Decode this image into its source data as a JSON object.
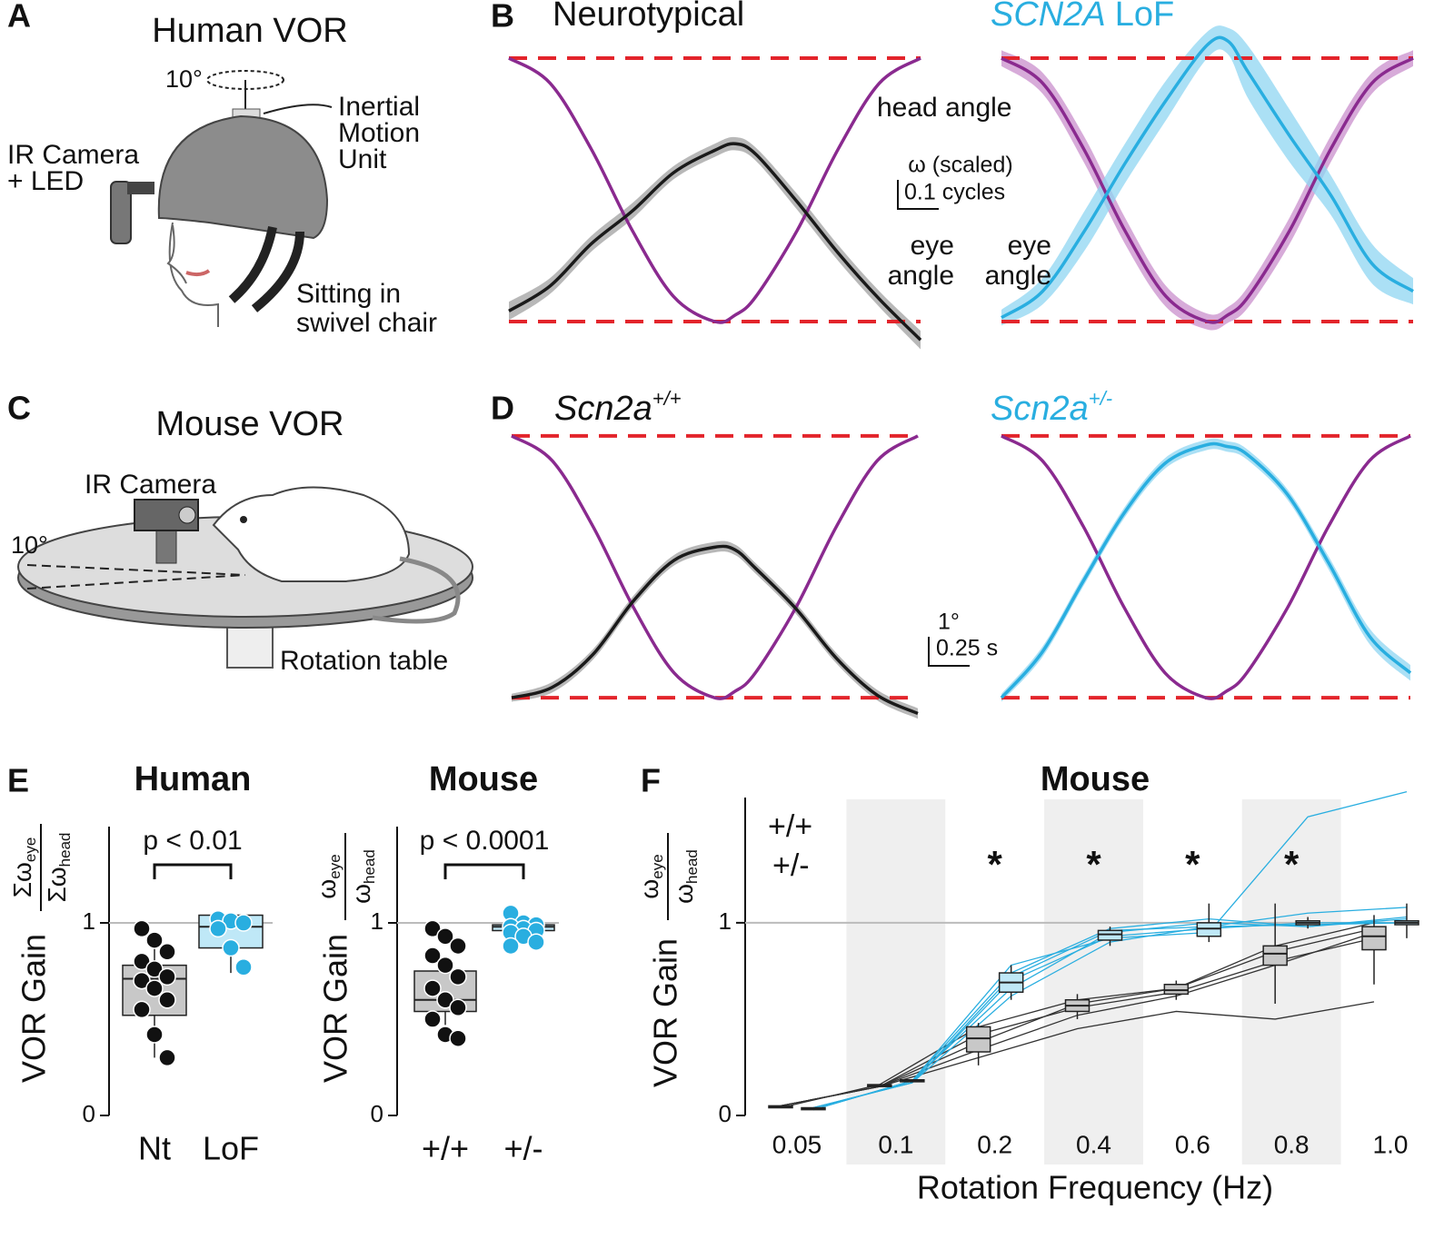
{
  "panel_labels": [
    "A",
    "B",
    "C",
    "D",
    "E",
    "F"
  ],
  "illustrations": [
    {
      "title": "Human VOR",
      "labels": [
        "10°",
        "Inertial",
        "Motion",
        "Unit",
        "IR Camera",
        "+ LED",
        "Sitting in",
        "swivel chair"
      ]
    },
    {
      "title": "Mouse VOR",
      "labels": [
        "IR Camera",
        "10°",
        "Rotation table"
      ]
    }
  ],
  "chart_data": [
    {
      "type": "line",
      "title_parts": [
        "Neurotypical"
      ],
      "title_styles": [
        "normal"
      ],
      "title_color": "#111111",
      "x": [
        0,
        0.1,
        0.2,
        0.3,
        0.4,
        0.5,
        0.55,
        0.6,
        0.7,
        0.8,
        0.9,
        1
      ],
      "xlim": [
        0,
        1
      ],
      "ylim": [
        -1.2,
        1.2
      ],
      "reference_lines": [
        -1,
        1
      ],
      "reference_color": "#e3242b",
      "series": [
        {
          "name_lines": [
            "head angle"
          ],
          "color": "#8a2a8f",
          "values": [
            1,
            0.81,
            0.31,
            -0.31,
            -0.81,
            -1,
            -0.95,
            -0.81,
            -0.31,
            0.31,
            0.81,
            1
          ]
        },
        {
          "name_lines": [
            "eye",
            "angle"
          ],
          "color": "#1a1a1a",
          "band_color": "#a0a0a0",
          "values": [
            -0.92,
            -0.73,
            -0.41,
            -0.16,
            0.13,
            0.3,
            0.35,
            0.27,
            -0.09,
            -0.48,
            -0.83,
            -1.14
          ],
          "errors": [
            0.07,
            0.06,
            0.06,
            0.06,
            0.05,
            0.05,
            0.05,
            0.05,
            0.06,
            0.06,
            0.06,
            0.07
          ]
        }
      ],
      "scale_bar": [
        "ω (scaled)",
        "0.1 cycles"
      ]
    },
    {
      "type": "line",
      "title_parts": [
        "SCN2A",
        "LoF"
      ],
      "title_styles": [
        "italic",
        "normal"
      ],
      "title_color": "#29aee0",
      "x": [
        0,
        0.1,
        0.2,
        0.3,
        0.4,
        0.5,
        0.55,
        0.6,
        0.7,
        0.8,
        0.9,
        1
      ],
      "xlim": [
        0,
        1
      ],
      "ylim": [
        -1.2,
        1.2
      ],
      "reference_lines": [
        -1,
        1
      ],
      "reference_color": "#e3242b",
      "series": [
        {
          "color": "#8a2a8f",
          "band_color": "#c98fcc",
          "values": [
            1,
            0.81,
            0.31,
            -0.31,
            -0.81,
            -1,
            -0.95,
            -0.81,
            -0.31,
            0.31,
            0.81,
            1
          ],
          "errors": [
            0.06,
            0.08,
            0.1,
            0.1,
            0.08,
            0.06,
            0.06,
            0.08,
            0.1,
            0.1,
            0.08,
            0.06
          ]
        },
        {
          "name_lines": [
            "eye",
            "angle"
          ],
          "color": "#29aee0",
          "band_color": "#8fd6f2",
          "values": [
            -0.97,
            -0.77,
            -0.32,
            0.2,
            0.68,
            1.1,
            1.13,
            0.89,
            0.41,
            -0.04,
            -0.56,
            -0.77
          ],
          "errors": [
            0.06,
            0.1,
            0.15,
            0.15,
            0.15,
            0.1,
            0.1,
            0.2,
            0.2,
            0.15,
            0.15,
            0.1
          ]
        }
      ]
    },
    {
      "type": "line",
      "title_parts": [
        "Scn2a",
        "+/+"
      ],
      "title_styles": [
        "italic",
        "superscript"
      ],
      "title_color": "#111111",
      "x": [
        0,
        0.1,
        0.2,
        0.3,
        0.4,
        0.5,
        0.55,
        0.6,
        0.7,
        0.8,
        0.9,
        1
      ],
      "xlim": [
        0,
        1
      ],
      "ylim": [
        -1.2,
        1.2
      ],
      "reference_lines": [
        -1,
        1
      ],
      "reference_color": "#e3242b",
      "series": [
        {
          "color": "#8a2a8f",
          "values": [
            1,
            0.81,
            0.31,
            -0.31,
            -0.81,
            -1,
            -0.95,
            -0.81,
            -0.31,
            0.31,
            0.81,
            1
          ]
        },
        {
          "color": "#1a1a1a",
          "band_color": "#a0a0a0",
          "values": [
            -1,
            -0.92,
            -0.67,
            -0.26,
            0.05,
            0.15,
            0.13,
            -0.01,
            -0.32,
            -0.7,
            -0.98,
            -1.12
          ],
          "errors": [
            0.03,
            0.04,
            0.04,
            0.04,
            0.04,
            0.04,
            0.04,
            0.04,
            0.04,
            0.04,
            0.04,
            0.04
          ]
        }
      ],
      "scale_bar": [
        "1°",
        "0.25 s"
      ]
    },
    {
      "type": "line",
      "title_parts": [
        "Scn2a",
        "+/-"
      ],
      "title_styles": [
        "italic",
        "superscript"
      ],
      "title_color": "#29aee0",
      "x": [
        0,
        0.1,
        0.2,
        0.3,
        0.4,
        0.5,
        0.55,
        0.6,
        0.7,
        0.8,
        0.9,
        1
      ],
      "xlim": [
        0,
        1
      ],
      "ylim": [
        -1.2,
        1.2
      ],
      "reference_lines": [
        -1,
        1
      ],
      "reference_color": "#e3242b",
      "series": [
        {
          "color": "#8a2a8f",
          "values": [
            1,
            0.81,
            0.31,
            -0.31,
            -0.81,
            -1,
            -0.95,
            -0.81,
            -0.31,
            0.31,
            0.81,
            1
          ]
        },
        {
          "color": "#29aee0",
          "band_color": "#8fd6f2",
          "values": [
            -1,
            -0.65,
            -0.11,
            0.41,
            0.79,
            0.93,
            0.92,
            0.86,
            0.55,
            0.03,
            -0.53,
            -0.81
          ],
          "errors": [
            0.03,
            0.04,
            0.04,
            0.04,
            0.04,
            0.04,
            0.04,
            0.04,
            0.04,
            0.05,
            0.06,
            0.06
          ]
        }
      ]
    },
    {
      "type": "box",
      "title": "Human",
      "categories": [
        "Nt",
        "LoF"
      ],
      "colors": [
        "#111111",
        "#29aee0"
      ],
      "box_colors": [
        "#c8c8c8",
        "#bfe8f7"
      ],
      "points": [
        [
          0.97,
          0.91,
          0.85,
          0.8,
          0.76,
          0.72,
          0.7,
          0.66,
          0.6,
          0.55,
          0.42,
          0.3
        ],
        [
          1.02,
          1.01,
          1.0,
          0.97,
          0.87,
          0.77
        ]
      ],
      "boxes": [
        {
          "low": 0.3,
          "q1": 0.52,
          "median": 0.71,
          "q3": 0.78,
          "high": 0.91
        },
        {
          "low": 0.74,
          "q1": 0.87,
          "median": 0.98,
          "q3": 1.04,
          "high": 1.05
        }
      ],
      "ylim": [
        0,
        1.5
      ],
      "yticks": [
        0,
        1
      ],
      "reference_line": 1,
      "annotation": "p < 0.01",
      "ylabel": "VOR Gain",
      "ylabel_fraction": {
        "numerator": "Σω",
        "numerator_sub": "eye",
        "denominator": "Σω",
        "denominator_sub": "head"
      }
    },
    {
      "type": "box",
      "title": "Mouse",
      "categories": [
        "+/+",
        "+/-"
      ],
      "colors": [
        "#111111",
        "#29aee0"
      ],
      "box_colors": [
        "#c8c8c8",
        "#bfe8f7"
      ],
      "points": [
        [
          0.97,
          0.93,
          0.88,
          0.83,
          0.78,
          0.72,
          0.66,
          0.6,
          0.56,
          0.5,
          0.42,
          0.4
        ],
        [
          1.05,
          1.0,
          0.99,
          0.98,
          0.97,
          0.96,
          0.95,
          0.93,
          0.9,
          0.88
        ]
      ],
      "boxes": [
        {
          "low": 0.47,
          "q1": 0.54,
          "median": 0.6,
          "q3": 0.75,
          "high": 0.82
        },
        {
          "low": 0.93,
          "q1": 0.96,
          "median": 0.98,
          "q3": 0.99,
          "high": 1.0
        }
      ],
      "ylim": [
        0,
        1.5
      ],
      "yticks": [
        0,
        1
      ],
      "reference_line": 1,
      "annotation": "p < 0.0001",
      "ylabel": "VOR Gain",
      "ylabel_fraction": {
        "numerator": "ω",
        "numerator_sub": "eye",
        "denominator": "ω",
        "denominator_sub": "head"
      }
    },
    {
      "type": "boxline",
      "title": "Mouse",
      "categories": [
        "0.05",
        "0.1",
        "0.2",
        "0.4",
        "0.6",
        "0.8",
        "1.0"
      ],
      "xlabel": "Rotation Frequency (Hz)",
      "ylabel": "VOR Gain",
      "ylabel_fraction": {
        "numerator": "ω",
        "numerator_sub": "eye",
        "denominator": "ω",
        "denominator_sub": "head"
      },
      "ylim": [
        0,
        1.65
      ],
      "yticks": [
        0,
        1
      ],
      "reference_line": 1,
      "annotations": [
        {
          "text": "*",
          "category": "0.2"
        },
        {
          "text": "*",
          "category": "0.4"
        },
        {
          "text": "*",
          "category": "0.6"
        },
        {
          "text": "*",
          "category": "0.8"
        }
      ],
      "series": [
        {
          "name": "+/+",
          "color": "#111111",
          "line_color": "#333333",
          "box_color": "#c8c8c8",
          "boxes": [
            {
              "low": 0.04,
              "q1": 0.04,
              "median": 0.045,
              "q3": 0.05,
              "high": 0.05
            },
            {
              "low": 0.15,
              "q1": 0.15,
              "median": 0.155,
              "q3": 0.16,
              "high": 0.16
            },
            {
              "low": 0.26,
              "q1": 0.33,
              "median": 0.4,
              "q3": 0.46,
              "high": 0.48
            },
            {
              "low": 0.5,
              "q1": 0.54,
              "median": 0.57,
              "q3": 0.6,
              "high": 0.63
            },
            {
              "low": 0.6,
              "q1": 0.63,
              "median": 0.65,
              "q3": 0.68,
              "high": 0.7
            },
            {
              "low": 0.58,
              "q1": 0.78,
              "median": 0.84,
              "q3": 0.88,
              "high": 1.1
            },
            {
              "low": 0.68,
              "q1": 0.86,
              "median": 0.93,
              "q3": 0.98,
              "high": 1.04
            }
          ],
          "lines": [
            [
              0.05,
              0.15,
              0.38,
              0.58,
              0.66,
              0.85,
              0.97
            ],
            [
              0.05,
              0.15,
              0.42,
              0.56,
              0.64,
              0.8,
              0.92
            ],
            [
              0.04,
              0.16,
              0.46,
              0.6,
              0.66,
              0.88,
              1.0
            ],
            [
              0.05,
              0.15,
              0.34,
              0.52,
              0.62,
              0.78,
              0.95
            ],
            [
              0.05,
              0.15,
              0.3,
              0.45,
              0.54,
              0.5,
              0.59
            ]
          ]
        },
        {
          "name": "+/-",
          "color": "#29aee0",
          "line_color": "#29aee0",
          "box_color": "#bfe8f7",
          "boxes": [
            {
              "low": 0.03,
              "q1": 0.03,
              "median": 0.035,
              "q3": 0.04,
              "high": 0.04
            },
            {
              "low": 0.175,
              "q1": 0.175,
              "median": 0.18,
              "q3": 0.185,
              "high": 0.185
            },
            {
              "low": 0.6,
              "q1": 0.64,
              "median": 0.69,
              "q3": 0.74,
              "high": 0.78
            },
            {
              "low": 0.88,
              "q1": 0.91,
              "median": 0.94,
              "q3": 0.96,
              "high": 0.98
            },
            {
              "low": 0.9,
              "q1": 0.93,
              "median": 0.97,
              "q3": 1.0,
              "high": 1.1
            },
            {
              "low": 0.97,
              "q1": 0.99,
              "median": 1.0,
              "q3": 1.01,
              "high": 1.03
            },
            {
              "low": 0.92,
              "q1": 0.99,
              "median": 1.0,
              "q3": 1.01,
              "high": 1.1
            }
          ],
          "lines": [
            [
              0.04,
              0.17,
              0.7,
              0.93,
              0.97,
              1.0,
              1.0
            ],
            [
              0.03,
              0.18,
              0.66,
              0.95,
              1.0,
              0.98,
              1.02
            ],
            [
              0.04,
              0.17,
              0.72,
              0.96,
              0.98,
              1.05,
              1.08
            ],
            [
              0.03,
              0.18,
              0.78,
              0.92,
              0.95,
              1.55,
              1.68
            ],
            [
              0.04,
              0.17,
              0.62,
              0.9,
              0.98,
              0.99,
              1.0
            ],
            [
              0.03,
              0.18,
              0.74,
              0.97,
              1.02,
              0.98,
              1.03
            ]
          ]
        }
      ]
    }
  ]
}
